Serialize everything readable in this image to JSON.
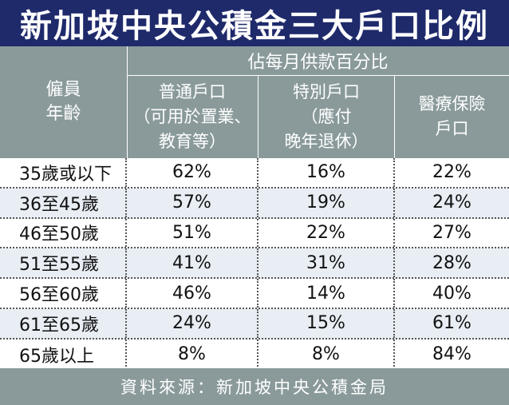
{
  "title": "新加坡中央公積金三大戶口比例",
  "header": {
    "age_label_line1": "僱員",
    "age_label_line2": "年齡",
    "group_label": "佔每月供款百分比",
    "columns": [
      {
        "line1": "普通戶口",
        "line2": "（可用於置業、",
        "line3": "教育等）"
      },
      {
        "line1": "特別戶口",
        "line2": "（應付",
        "line3": "晚年退休）"
      },
      {
        "line1": "醫療保險",
        "line2": "戶口",
        "line3": ""
      }
    ]
  },
  "rows": [
    {
      "age": "35歲或以下",
      "ordinary": "62%",
      "special": "16%",
      "medisave": "22%"
    },
    {
      "age": "36至45歲",
      "ordinary": "57%",
      "special": "19%",
      "medisave": "24%"
    },
    {
      "age": "46至50歲",
      "ordinary": "51%",
      "special": "22%",
      "medisave": "27%"
    },
    {
      "age": "51至55歲",
      "ordinary": "41%",
      "special": "31%",
      "medisave": "28%"
    },
    {
      "age": "56至60歲",
      "ordinary": "46%",
      "special": "14%",
      "medisave": "40%"
    },
    {
      "age": "61至65歲",
      "ordinary": "24%",
      "special": "15%",
      "medisave": "61%"
    },
    {
      "age": "65歲以上",
      "ordinary": "8%",
      "special": "8%",
      "medisave": "84%"
    }
  ],
  "footer": "資料來源：新加坡中央公積金局",
  "colors": {
    "title_bg": "#1f2a6b",
    "header_bg": "#8a9a9b",
    "alt_row_bg": "#e8eef4"
  }
}
